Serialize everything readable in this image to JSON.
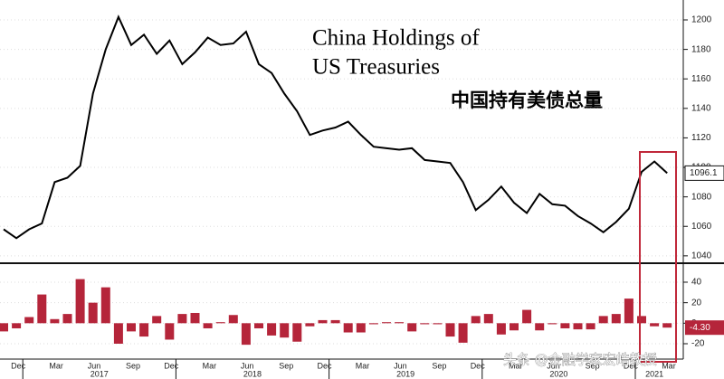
{
  "title_lines": [
    "China Holdings of",
    "US Treasuries"
  ],
  "subtitle_cn": "中国持有美债总量",
  "watermark": "头条 @金融学家宏皓教授",
  "chart_data": [
    {
      "type": "line",
      "color": "#000000",
      "ylim": [
        1035,
        1213.5
      ],
      "yticks": [
        1040,
        1060,
        1080,
        1100,
        1120,
        1140,
        1160,
        1180,
        1200
      ],
      "series": [
        {
          "values": [
            1058,
            1052,
            1058,
            1062,
            1090,
            1093,
            1101,
            1150,
            1180,
            1202,
            1183,
            1190,
            1177,
            1186,
            1170,
            1178,
            1188,
            1183,
            1184,
            1192,
            1170,
            1164,
            1150,
            1138,
            1122,
            1125,
            1127,
            1131,
            1122,
            1114,
            1113,
            1112,
            1113,
            1105,
            1104,
            1103,
            1090,
            1071,
            1078,
            1087,
            1076,
            1069,
            1082,
            1075,
            1074,
            1067,
            1062,
            1056,
            1063,
            1072,
            1097,
            1104,
            1096.1
          ]
        }
      ]
    },
    {
      "type": "bar",
      "color": "#b5253a",
      "ylim": [
        -35,
        58.5
      ],
      "yticks": [
        -20,
        0,
        20,
        40
      ],
      "categories": [
        null,
        "Dec",
        null,
        null,
        "Mar",
        null,
        null,
        "Jun",
        null,
        null,
        "Sep",
        null,
        null,
        "Dec",
        null,
        null,
        "Mar",
        null,
        null,
        "Jun",
        null,
        null,
        "Sep",
        null,
        null,
        "Dec",
        null,
        null,
        "Mar",
        null,
        null,
        "Jun",
        null,
        null,
        "Sep",
        null,
        null,
        "Dec",
        null,
        null,
        "Mar",
        null,
        null,
        "Jun",
        null,
        null,
        "Sep",
        null,
        null,
        "Dec",
        null,
        null,
        "Mar"
      ],
      "years": [
        "2017",
        "2018",
        "2019",
        "2020",
        "2021"
      ],
      "values": [
        -8,
        -5,
        6,
        28,
        4,
        9,
        43,
        20,
        35,
        -20,
        -8,
        -13,
        7,
        -16,
        9,
        10,
        -5,
        1,
        8,
        -21,
        -5,
        -12,
        -14,
        -18,
        -3,
        3,
        3,
        -9,
        -9,
        -1,
        1,
        1,
        -8,
        -1,
        -1,
        -13,
        -19,
        7,
        9,
        -11,
        -7,
        13,
        -7,
        -1,
        -5,
        -6,
        -6,
        7,
        9,
        24,
        7,
        -3,
        -4.3
      ],
      "value_labels": [
        null,
        null,
        null,
        null,
        null,
        null,
        null,
        null,
        null,
        null,
        null,
        null,
        null,
        null,
        null,
        null,
        null,
        null,
        null,
        null,
        null,
        null,
        null,
        null,
        null,
        null,
        null,
        null,
        null,
        null,
        null,
        null,
        null,
        null,
        null,
        null,
        null,
        null,
        null,
        null,
        null,
        null,
        null,
        null,
        null,
        null,
        null,
        null,
        null,
        null,
        null,
        null,
        "-4.30"
      ]
    }
  ]
}
